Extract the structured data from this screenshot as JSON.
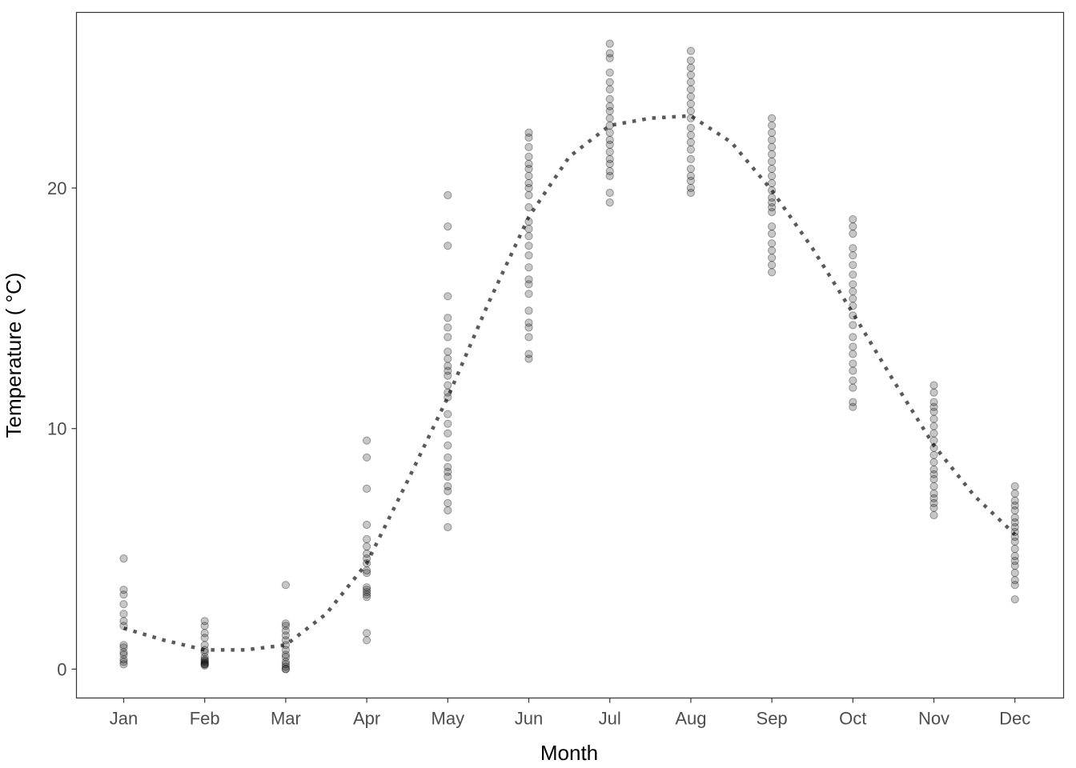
{
  "chart_data": {
    "type": "scatter",
    "title": "",
    "xlabel": "Month",
    "ylabel": "Temperature ( °C)",
    "categories": [
      "Jan",
      "Feb",
      "Mar",
      "Apr",
      "May",
      "Jun",
      "Jul",
      "Aug",
      "Sep",
      "Oct",
      "Nov",
      "Dec"
    ],
    "ylim": [
      -1.2,
      27.3
    ],
    "yticks": [
      0,
      10,
      20
    ],
    "grid": false,
    "legend": "none",
    "colors": {
      "points": "#000000",
      "trend": "#5a5a5a",
      "axis": "#333333"
    },
    "points": [
      [
        4.6,
        3.3,
        3.1,
        2.7,
        2.3,
        2.0,
        1.8,
        1.0,
        0.9,
        0.7,
        0.6,
        0.4,
        0.3,
        0.2
      ],
      [
        2.0,
        1.8,
        1.5,
        1.3,
        1.0,
        0.8,
        0.7,
        0.5,
        0.4,
        0.35,
        0.3,
        0.25,
        0.2,
        0.2,
        0.15
      ],
      [
        3.5,
        1.9,
        1.8,
        1.6,
        1.4,
        1.2,
        1.0,
        0.8,
        0.6,
        0.5,
        0.3,
        0.2,
        0.1,
        0.0,
        0.0
      ],
      [
        9.5,
        8.8,
        7.5,
        6.0,
        5.4,
        5.1,
        4.8,
        4.6,
        4.4,
        4.1,
        4.0,
        3.4,
        3.3,
        3.2,
        3.1,
        3.0,
        1.5,
        1.2
      ],
      [
        19.7,
        18.4,
        17.6,
        15.5,
        14.6,
        14.2,
        13.8,
        13.2,
        12.9,
        12.6,
        12.4,
        12.2,
        11.8,
        11.5,
        11.3,
        10.6,
        10.2,
        9.8,
        9.3,
        8.8,
        8.4,
        8.2,
        8.0,
        7.6,
        7.4,
        6.9,
        6.6,
        5.9
      ],
      [
        22.3,
        22.1,
        21.7,
        21.3,
        21.0,
        20.8,
        20.5,
        20.2,
        20.0,
        19.7,
        19.2,
        18.6,
        18.3,
        18.0,
        17.6,
        17.2,
        16.7,
        16.2,
        16.0,
        15.6,
        14.9,
        14.4,
        14.2,
        13.8,
        13.1,
        12.9
      ],
      [
        26.0,
        25.6,
        25.4,
        24.8,
        24.4,
        24.1,
        23.7,
        23.4,
        23.2,
        22.9,
        22.6,
        22.3,
        22.0,
        21.8,
        21.5,
        21.2,
        21.0,
        20.7,
        20.5,
        19.8,
        19.4
      ],
      [
        25.7,
        25.3,
        25.0,
        24.7,
        24.4,
        24.1,
        23.8,
        23.5,
        23.2,
        22.9,
        22.5,
        22.2,
        21.9,
        21.6,
        21.2,
        20.8,
        20.5,
        20.3,
        20.0,
        19.8
      ],
      [
        22.9,
        22.6,
        22.3,
        22.0,
        21.7,
        21.4,
        21.1,
        20.8,
        20.5,
        20.2,
        19.9,
        19.6,
        19.4,
        19.2,
        19.0,
        18.4,
        18.1,
        17.7,
        17.4,
        17.1,
        16.8,
        16.5
      ],
      [
        18.7,
        18.4,
        18.1,
        17.5,
        17.2,
        16.8,
        16.4,
        16.0,
        15.7,
        15.4,
        15.1,
        14.7,
        14.3,
        13.8,
        13.4,
        13.1,
        12.7,
        12.4,
        12.0,
        11.7,
        11.1,
        10.9
      ],
      [
        11.8,
        11.5,
        11.1,
        10.9,
        10.7,
        10.4,
        10.1,
        9.8,
        9.5,
        9.2,
        8.9,
        8.6,
        8.3,
        8.1,
        7.9,
        7.6,
        7.3,
        7.1,
        6.9,
        6.7,
        6.4
      ],
      [
        7.6,
        7.3,
        7.0,
        6.8,
        6.6,
        6.3,
        6.1,
        5.9,
        5.7,
        5.5,
        5.3,
        5.0,
        4.7,
        4.5,
        4.3,
        4.0,
        3.7,
        3.5,
        2.9
      ]
    ],
    "trend": {
      "x": [
        1,
        1.5,
        2,
        2.5,
        3,
        3.5,
        4,
        4.5,
        5,
        5.5,
        6,
        6.5,
        7,
        7.5,
        8,
        8.5,
        9,
        9.5,
        10,
        10.5,
        11,
        11.5,
        12
      ],
      "y": [
        1.7,
        1.2,
        0.8,
        0.8,
        1.0,
        2.3,
        4.4,
        7.8,
        11.3,
        15.2,
        18.8,
        21.3,
        22.6,
        22.9,
        23.0,
        21.9,
        19.9,
        17.5,
        14.8,
        12.0,
        9.3,
        7.2,
        5.6
      ]
    }
  }
}
